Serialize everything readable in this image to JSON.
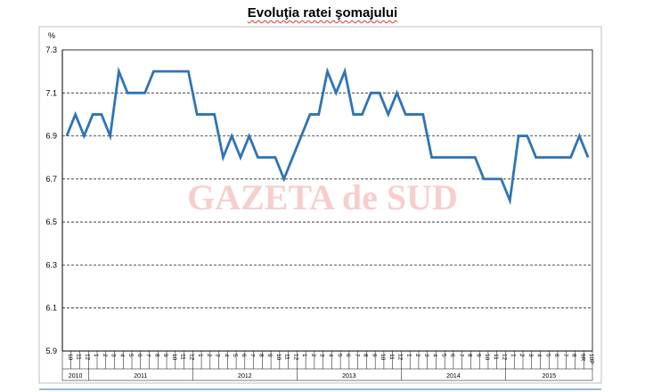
{
  "chart_data": {
    "type": "line",
    "title": "Evoluţia ratei şomajului",
    "ylabel": "%",
    "xlabel": "",
    "ylim": [
      5.9,
      7.3
    ],
    "yticks": [
      "7.3",
      "7.1",
      "6.9",
      "6.7",
      "6.5",
      "6.3",
      "6.1",
      "5.9"
    ],
    "grid": true,
    "legend": "none",
    "line_color": "#2f74b5",
    "watermark": "GAZETA de SUD",
    "categories": [
      "10",
      "11",
      "12",
      "1",
      "2",
      "3",
      "4",
      "5",
      "6",
      "7",
      "8",
      "9",
      "10",
      "11",
      "12",
      "1",
      "2",
      "3",
      "4",
      "5",
      "6",
      "7",
      "8",
      "9",
      "10",
      "11",
      "12",
      "1",
      "2",
      "3",
      "4",
      "5",
      "6",
      "7",
      "8",
      "9",
      "10",
      "11",
      "12",
      "1",
      "2",
      "3",
      "4",
      "5",
      "6",
      "7",
      "8",
      "9",
      "10",
      "11",
      "12",
      "1",
      "2",
      "3",
      "4",
      "5",
      "6",
      "7",
      "8",
      "9R",
      "10P"
    ],
    "years": [
      {
        "label": "2010",
        "start": 0,
        "end": 3
      },
      {
        "label": "2011",
        "start": 3,
        "end": 15
      },
      {
        "label": "2012",
        "start": 15,
        "end": 27
      },
      {
        "label": "2013",
        "start": 27,
        "end": 39
      },
      {
        "label": "2014",
        "start": 39,
        "end": 51
      },
      {
        "label": "2015",
        "start": 51,
        "end": 61
      }
    ],
    "series": [
      {
        "values": [
          6.9,
          7.0,
          6.9,
          7.0,
          7.0,
          6.9,
          7.2,
          7.1,
          7.1,
          7.1,
          7.2,
          7.2,
          7.2,
          7.2,
          7.2,
          7.0,
          7.0,
          7.0,
          6.8,
          6.9,
          6.8,
          6.9,
          6.8,
          6.8,
          6.8,
          6.7,
          6.8,
          6.9,
          7.0,
          7.0,
          7.2,
          7.1,
          7.2,
          7.0,
          7.0,
          7.1,
          7.1,
          7.0,
          7.1,
          7.0,
          7.0,
          7.0,
          6.8,
          6.8,
          6.8,
          6.8,
          6.8,
          6.8,
          6.7,
          6.7,
          6.7,
          6.6,
          6.9,
          6.9,
          6.8,
          6.8,
          6.8,
          6.8,
          6.8,
          6.9,
          6.8
        ]
      }
    ]
  }
}
